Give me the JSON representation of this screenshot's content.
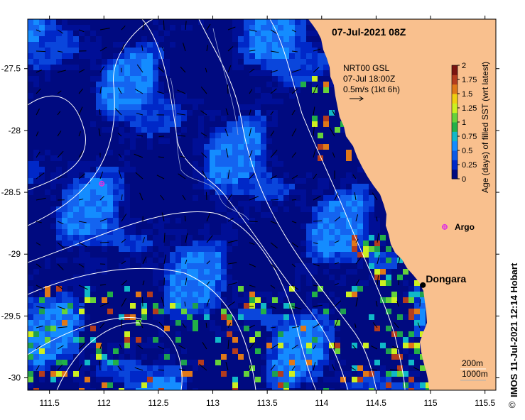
{
  "map": {
    "date_title": "07-Jul-2021 08Z",
    "current_info": {
      "line1": "NRT00 GSL",
      "line2": "07-Jul 18:00Z",
      "line3": "0.5m/s (1kt 6h)"
    },
    "colorbar": {
      "label": "Age (days) of filled SST (wrt latest)",
      "ticks": [
        "0",
        "0.25",
        "0.5",
        "0.75",
        "1",
        "1.25",
        "1.5",
        "1.75",
        "2"
      ],
      "colors": [
        "#000a80",
        "#0028c8",
        "#0a5ae6",
        "#148cff",
        "#10b8c8",
        "#22b048",
        "#66d23a",
        "#ccf020",
        "#f0d010",
        "#e07818",
        "#b43c1e",
        "#7a1410"
      ]
    },
    "x_axis": {
      "ticks": [
        "111.5",
        "112",
        "112.5",
        "113",
        "113.5",
        "114",
        "114.5",
        "115",
        "115.5"
      ],
      "range": [
        111.3,
        115.6
      ]
    },
    "y_axis": {
      "ticks": [
        "-27.5",
        "-28",
        "-28.5",
        "-29",
        "-29.5",
        "-30"
      ],
      "range": [
        -30.1,
        -27.1
      ]
    },
    "places": [
      {
        "name": "Dongara",
        "lon": 114.93,
        "lat": -29.25
      }
    ],
    "markers": [
      {
        "label": "Argo",
        "lon": 115.13,
        "lat": -28.78,
        "color": "#e030e0"
      },
      {
        "label": "",
        "lon": 111.98,
        "lat": -28.43,
        "color": "#e030e0"
      }
    ],
    "depth_legend": {
      "line1": "200m",
      "line2": "1000m"
    },
    "credit": "IMOS 11-Jul-2021 12:14 Hobart",
    "copyright_symbol": "©",
    "colors": {
      "land": "#f9c08e",
      "ocean_deep": "#000a80",
      "ocean_mid": "#0028c8",
      "contour": "#ffffff",
      "arrow": "#000000"
    }
  }
}
